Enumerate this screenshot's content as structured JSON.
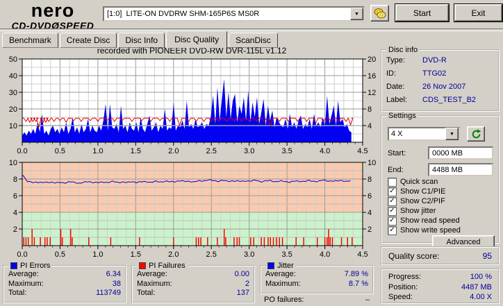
{
  "app": {
    "logo": {
      "top": "nero",
      "sub_left": "CD-DVD",
      "disc_glyph": "Ø",
      "sub_right": "SPEED"
    },
    "drive_select": {
      "value": "[1:0]  LITE-ON DVDRW SHM-165P6S MS0R"
    },
    "buttons": {
      "start": "Start",
      "exit": "Exit"
    }
  },
  "tabs": [
    {
      "label": "Benchmark",
      "active": false
    },
    {
      "label": "Create Disc",
      "active": false
    },
    {
      "label": "Disc Info",
      "active": false
    },
    {
      "label": "Disc Quality",
      "active": true
    },
    {
      "label": "ScanDisc",
      "active": false
    }
  ],
  "chart_data": [
    {
      "type": "area",
      "title": "recorded with PIONEER DVD-RW  DVR-115L v1.12",
      "x_range": [
        0,
        4.5
      ],
      "x_ticks": [
        0,
        0.5,
        1,
        1.5,
        2,
        2.5,
        3,
        3.5,
        4,
        4.5
      ],
      "y_left": {
        "range": [
          0,
          50
        ],
        "ticks": [
          10,
          20,
          30,
          40,
          50
        ]
      },
      "y_right": {
        "range": [
          0,
          20
        ],
        "ticks": [
          4,
          8,
          12,
          16,
          20
        ]
      },
      "data_end_x": 4.35,
      "grid": true,
      "series": [
        {
          "name": "PI Errors",
          "type": "area",
          "color": "#0202f0",
          "values": [
            4,
            6,
            4,
            7,
            5,
            8,
            5,
            12,
            6,
            17,
            5,
            7,
            4,
            8,
            10,
            6,
            8,
            5,
            9,
            6,
            12,
            5,
            8,
            15,
            6,
            9,
            5,
            11,
            6,
            8,
            14,
            6,
            10,
            7,
            6,
            10,
            7,
            13,
            23,
            7,
            23,
            9,
            8,
            11,
            6,
            22,
            8,
            10,
            6,
            12,
            8,
            7,
            12,
            6,
            15,
            8,
            6,
            11,
            16,
            7,
            9,
            12,
            6,
            10,
            8,
            20,
            7,
            9,
            8,
            24,
            7,
            10,
            9,
            13,
            8,
            25,
            9,
            11,
            8,
            14,
            9,
            10,
            12,
            8,
            11,
            10,
            16,
            28,
            11,
            33,
            13,
            26,
            38,
            15,
            30,
            14,
            25,
            29,
            12,
            22,
            17,
            27,
            13,
            31,
            12,
            24,
            15,
            27,
            11,
            18,
            26,
            10,
            22,
            13,
            19,
            9,
            15,
            12,
            10,
            9,
            14,
            8,
            17,
            9,
            12,
            8,
            13,
            16,
            8,
            11,
            9,
            14,
            8,
            17,
            10,
            12,
            9,
            15,
            10,
            28,
            11,
            16,
            22,
            10,
            25,
            12,
            14,
            9,
            11,
            7,
            6
          ]
        },
        {
          "name": "write speed",
          "type": "line",
          "color": "#dd0000",
          "baseline": 14.5,
          "dips": [
            [
              0.05,
              2
            ],
            [
              0.1,
              2.5
            ],
            [
              0.14,
              2
            ],
            [
              0.18,
              2
            ],
            [
              0.22,
              5.5
            ],
            [
              0.27,
              3
            ],
            [
              0.31,
              2.5
            ],
            [
              0.35,
              2
            ],
            [
              0.42,
              2
            ],
            [
              0.5,
              1.5
            ],
            [
              0.58,
              2.5
            ],
            [
              0.68,
              1.5
            ],
            [
              0.78,
              2
            ],
            [
              0.9,
              1.5
            ],
            [
              1.0,
              2
            ],
            [
              1.12,
              1.5
            ],
            [
              1.22,
              2
            ],
            [
              1.32,
              1.5
            ],
            [
              1.45,
              2
            ],
            [
              1.58,
              1.5
            ],
            [
              1.7,
              2
            ],
            [
              1.82,
              1.5
            ],
            [
              1.95,
              2
            ],
            [
              2.08,
              4.5
            ],
            [
              2.2,
              2
            ],
            [
              2.3,
              2
            ],
            [
              2.4,
              2
            ],
            [
              2.5,
              2
            ],
            [
              2.6,
              2
            ],
            [
              2.7,
              2
            ],
            [
              2.8,
              2
            ],
            [
              2.9,
              2
            ],
            [
              3.0,
              2
            ],
            [
              3.1,
              2
            ],
            [
              3.2,
              2
            ],
            [
              3.28,
              4.5
            ],
            [
              3.4,
              2
            ],
            [
              3.52,
              2
            ],
            [
              3.64,
              2
            ],
            [
              3.76,
              2
            ],
            [
              3.88,
              3
            ],
            [
              3.98,
              2
            ],
            [
              4.08,
              2
            ],
            [
              4.18,
              2
            ],
            [
              4.28,
              2
            ],
            [
              4.34,
              4
            ]
          ]
        },
        {
          "name": "read speed",
          "type": "line",
          "color": "#a8a8a8",
          "value": 10
        }
      ]
    },
    {
      "type": "line",
      "x_range": [
        0,
        4.5
      ],
      "x_ticks": [
        0,
        0.5,
        1,
        1.5,
        2,
        2.5,
        3,
        3.5,
        4,
        4.5
      ],
      "y_left": {
        "range": [
          0,
          10
        ],
        "ticks": [
          2,
          4,
          6,
          8,
          10
        ]
      },
      "y_right": {
        "range": [
          0,
          10
        ],
        "ticks": [
          2,
          4,
          6,
          8,
          10
        ]
      },
      "bands": [
        {
          "from": 4,
          "to": 10,
          "color": "#f8cbb0"
        },
        {
          "from": 0,
          "to": 4,
          "color": "#ccf2cc"
        }
      ],
      "data_end_x": 4.35,
      "grid": true,
      "series": [
        {
          "name": "Jitter",
          "type": "line",
          "color": "#0000cc",
          "values": [
            8.6,
            7.7,
            7.6,
            7.65,
            7.55,
            7.6,
            7.65,
            7.5,
            7.6,
            7.55,
            7.65,
            7.6,
            7.5,
            7.6,
            7.7,
            7.6,
            7.55,
            7.65,
            7.6,
            7.7,
            7.6,
            7.65,
            7.55,
            7.7,
            7.6,
            7.65,
            7.7,
            7.6,
            7.7,
            7.65,
            7.75,
            7.65,
            7.7,
            7.8,
            7.7,
            7.75,
            7.65,
            7.75,
            7.8,
            7.9,
            7.8,
            7.75,
            7.85,
            7.7,
            7.8,
            7.75,
            7.7,
            7.8,
            7.75,
            7.85,
            7.7,
            7.75,
            7.8,
            7.7,
            7.75,
            7.7,
            7.65,
            7.75,
            7.7,
            7.75,
            7.8,
            7.7,
            7.75,
            7.85,
            7.75,
            7.8,
            7.75,
            7.8,
            7.75,
            7.8
          ]
        },
        {
          "name": "PI Failures",
          "type": "bars",
          "color": "#ff0000",
          "points": [
            [
              0.02,
              1
            ],
            [
              0.05,
              1
            ],
            [
              0.08,
              1
            ],
            [
              0.13,
              2
            ],
            [
              0.16,
              1
            ],
            [
              0.24,
              1
            ],
            [
              0.3,
              1
            ],
            [
              0.33,
              1
            ],
            [
              0.37,
              1
            ],
            [
              0.51,
              2
            ],
            [
              0.53,
              1
            ],
            [
              0.64,
              2
            ],
            [
              0.66,
              1
            ],
            [
              0.88,
              1
            ],
            [
              1.17,
              1
            ],
            [
              1.55,
              1
            ],
            [
              2.0,
              1
            ],
            [
              2.3,
              1
            ],
            [
              2.33,
              1
            ],
            [
              2.36,
              1
            ],
            [
              2.45,
              1
            ],
            [
              2.58,
              1
            ],
            [
              2.67,
              2
            ],
            [
              2.69,
              1
            ],
            [
              2.8,
              1
            ],
            [
              2.84,
              1
            ],
            [
              2.87,
              1
            ],
            [
              3.02,
              1
            ],
            [
              3.06,
              1
            ],
            [
              3.16,
              1
            ],
            [
              3.2,
              1
            ],
            [
              3.25,
              1
            ],
            [
              3.28,
              1
            ],
            [
              3.32,
              1
            ],
            [
              3.36,
              1
            ],
            [
              3.4,
              1
            ],
            [
              3.44,
              1
            ],
            [
              3.62,
              1
            ],
            [
              3.72,
              1
            ],
            [
              3.9,
              1
            ],
            [
              4.0,
              1
            ],
            [
              4.03,
              1
            ],
            [
              4.05,
              2
            ],
            [
              4.07,
              1
            ],
            [
              4.1,
              1
            ],
            [
              4.22,
              1
            ],
            [
              4.3,
              1
            ],
            [
              4.36,
              1
            ]
          ]
        }
      ]
    }
  ],
  "disc_info": {
    "title": "Disc info",
    "rows": [
      {
        "label": "Type:",
        "value": "DVD-R"
      },
      {
        "label": "ID:",
        "value": "TTG02"
      },
      {
        "label": "Date:",
        "value": "26 Nov 2007"
      },
      {
        "label": "Label:",
        "value": "CDS_TEST_B2"
      }
    ]
  },
  "settings": {
    "title": "Settings",
    "speed": "4 X",
    "start_label": "Start:",
    "start_value": "0000 MB",
    "end_label": "End:",
    "end_value": "4488 MB",
    "checkboxes": [
      {
        "label": "Quick scan",
        "checked": false
      },
      {
        "label": "Show C1/PIE",
        "checked": true
      },
      {
        "label": "Show C2/PIF",
        "checked": true
      },
      {
        "label": "Show jitter",
        "checked": true
      },
      {
        "label": "Show read speed",
        "checked": true
      },
      {
        "label": "Show write speed",
        "checked": true
      }
    ],
    "advanced_button": "Advanced"
  },
  "quality": {
    "label": "Quality score:",
    "value": "95"
  },
  "progress": {
    "rows": [
      {
        "label": "Progress:",
        "value": "100 %"
      },
      {
        "label": "Position:",
        "value": "4487 MB"
      },
      {
        "label": "Speed:",
        "value": "4.00 X"
      }
    ]
  },
  "stats": {
    "pi_errors": {
      "title": "PI Errors",
      "color": "#0202f0",
      "rows": [
        {
          "label": "Average:",
          "value": "6.34"
        },
        {
          "label": "Maximum:",
          "value": "38"
        },
        {
          "label": "Total:",
          "value": "113749"
        }
      ]
    },
    "pi_failures": {
      "title": "PI Failures",
      "color": "#ff0000",
      "rows": [
        {
          "label": "Average:",
          "value": "0.00"
        },
        {
          "label": "Maximum:",
          "value": "2"
        },
        {
          "label": "Total:",
          "value": "137"
        }
      ]
    },
    "jitter": {
      "title": "Jitter",
      "color": "#0202f0",
      "rows": [
        {
          "label": "Average:",
          "value": "7.89 %"
        },
        {
          "label": "Maximum:",
          "value": "8.7 %"
        }
      ]
    },
    "po_failures": {
      "label": "PO failures:",
      "value": "–"
    }
  }
}
